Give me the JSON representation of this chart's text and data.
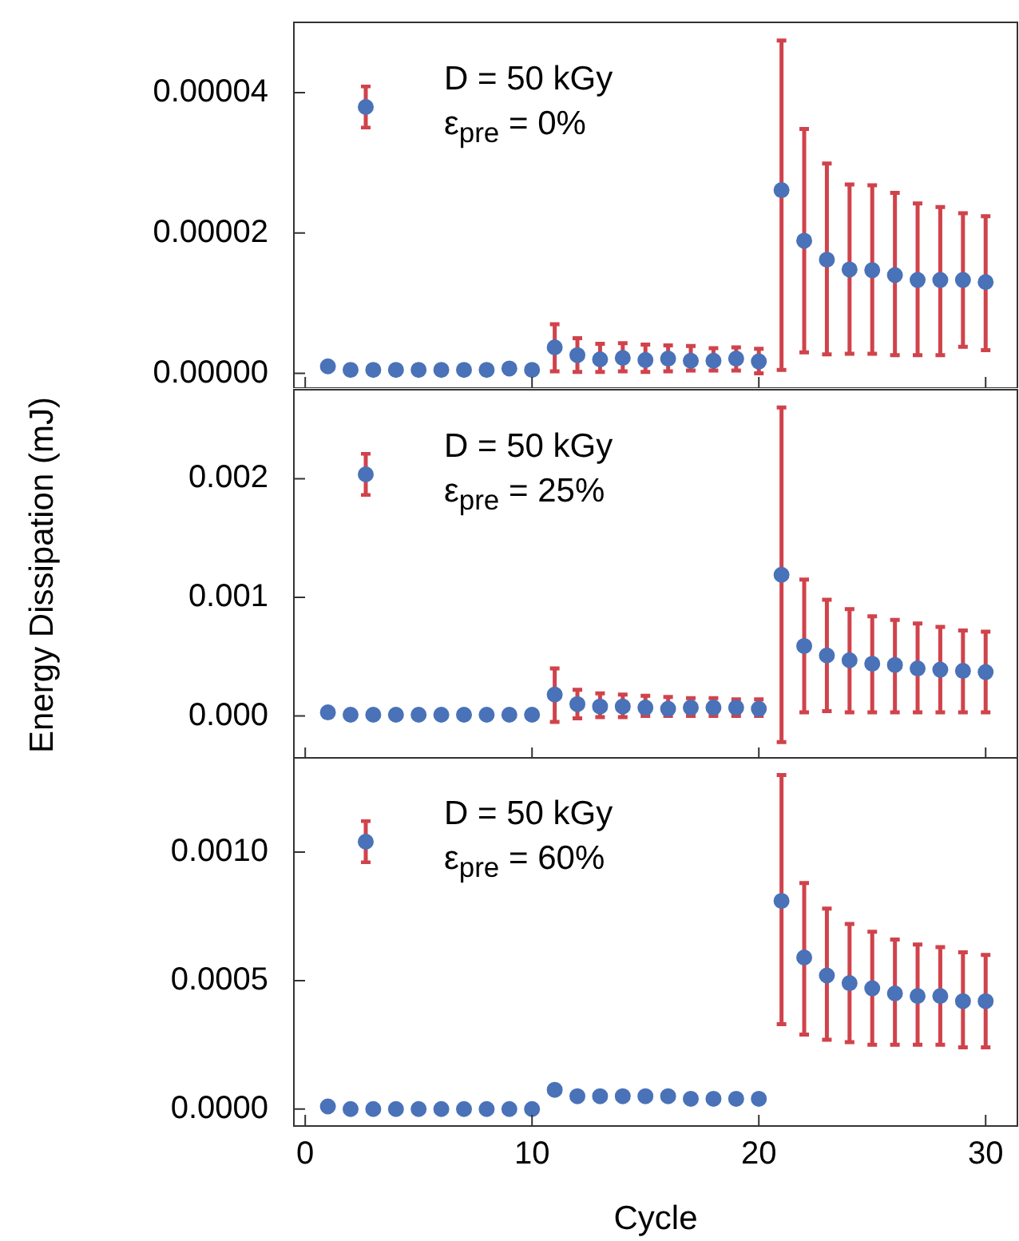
{
  "chart_data": [
    {
      "type": "scatter",
      "x": [
        1,
        2,
        3,
        4,
        5,
        6,
        7,
        8,
        9,
        10,
        11,
        12,
        13,
        14,
        15,
        16,
        17,
        18,
        19,
        20,
        21,
        22,
        23,
        24,
        25,
        26,
        27,
        28,
        29,
        30
      ],
      "xlim": [
        -0.5,
        31.4
      ],
      "xticks": [
        0,
        10,
        20,
        30
      ],
      "ylim": [
        -2.1e-06,
        5e-05
      ],
      "yticks": [
        {
          "value": 0,
          "label": "0.00000"
        },
        {
          "value": 2e-05,
          "label": "0.00002"
        },
        {
          "value": 4e-05,
          "label": "0.00004"
        }
      ],
      "tick_labels": "y",
      "marker": "circle",
      "legend": "top left",
      "series": [
        {
          "name": "D = 50 kGy\nε$_{pre}$ = 0%",
          "color": "#4a72b8",
          "values": [
            1e-06,
            5e-07,
            5e-07,
            5e-07,
            5e-07,
            5e-07,
            5e-07,
            5e-07,
            7e-07,
            5e-07,
            3.7e-06,
            2.6e-06,
            2e-06,
            2.2e-06,
            1.9e-06,
            2.1e-06,
            1.8e-06,
            1.8e-06,
            2.1e-06,
            1.7e-06,
            2.61e-05,
            1.89e-05,
            1.62e-05,
            1.48e-05,
            1.47e-05,
            1.4e-05,
            1.33e-05,
            1.33e-05,
            1.33e-05,
            1.3e-05
          ],
          "errors": [
            null,
            null,
            null,
            null,
            null,
            null,
            null,
            null,
            null,
            null,
            [
              3e-07,
              7e-06
            ],
            [
              2e-07,
              5e-06
            ],
            [
              2e-07,
              4.2e-06
            ],
            [
              3e-07,
              4.3e-06
            ],
            [
              2e-07,
              4.1e-06
            ],
            [
              3e-07,
              4e-06
            ],
            [
              4e-07,
              3.9e-06
            ],
            [
              4e-07,
              3.6e-06
            ],
            [
              4e-07,
              3.7e-06
            ],
            [
              0,
              3.5e-06
            ],
            [
              5e-07,
              4.74e-05
            ],
            [
              3e-06,
              3.48e-05
            ],
            [
              2.7e-06,
              2.99e-05
            ],
            [
              2.8e-06,
              2.69e-05
            ],
            [
              2.8e-06,
              2.68e-05
            ],
            [
              2.6e-06,
              2.57e-05
            ],
            [
              2.6e-06,
              2.42e-05
            ],
            [
              2.6e-06,
              2.37e-05
            ],
            [
              3.8e-06,
              2.28e-05
            ],
            [
              3.3e-06,
              2.24e-05
            ]
          ]
        }
      ]
    },
    {
      "type": "scatter",
      "x": [
        1,
        2,
        3,
        4,
        5,
        6,
        7,
        8,
        9,
        10,
        11,
        12,
        13,
        14,
        15,
        16,
        17,
        18,
        19,
        20,
        21,
        22,
        23,
        24,
        25,
        26,
        27,
        28,
        29,
        30
      ],
      "xlim": [
        -0.5,
        31.4
      ],
      "xticks": [
        0,
        10,
        20,
        30
      ],
      "ylim": [
        -0.00036,
        0.00275
      ],
      "yticks": [
        {
          "value": 0,
          "label": "0.000"
        },
        {
          "value": 0.001,
          "label": "0.001"
        },
        {
          "value": 0.002,
          "label": "0.002"
        }
      ],
      "tick_labels": "y",
      "marker": "circle",
      "legend": "top left",
      "ylabel": "Energy Dissipation (mJ)",
      "series": [
        {
          "name": "D = 50 kGy\nε$_{pre}$ = 25%",
          "color": "#4a72b8",
          "values": [
            3e-05,
            1e-05,
            1e-05,
            1e-05,
            1e-05,
            1e-05,
            1e-05,
            1e-05,
            1e-05,
            1e-05,
            0.00018,
            0.0001,
            8e-05,
            8e-05,
            7e-05,
            6e-05,
            7e-05,
            7e-05,
            7e-05,
            6e-05,
            0.00119,
            0.00059,
            0.00051,
            0.00047,
            0.00044,
            0.00043,
            0.0004,
            0.00039,
            0.00038,
            0.00037
          ],
          "errors": [
            null,
            null,
            null,
            null,
            null,
            null,
            null,
            null,
            null,
            null,
            [
              -5e-05,
              0.0004
            ],
            [
              -2e-05,
              0.00022
            ],
            [
              -1e-05,
              0.00019
            ],
            [
              -1e-05,
              0.00018
            ],
            [
              0,
              0.00017
            ],
            [
              0,
              0.00016
            ],
            [
              0,
              0.00015
            ],
            [
              0,
              0.00015
            ],
            [
              0,
              0.00014
            ],
            [
              0,
              0.00014
            ],
            [
              -0.00022,
              0.0026
            ],
            [
              3e-05,
              0.00115
            ],
            [
              4e-05,
              0.00098
            ],
            [
              3e-05,
              0.0009
            ],
            [
              3e-05,
              0.00084
            ],
            [
              3e-05,
              0.00081
            ],
            [
              3e-05,
              0.00078
            ],
            [
              3e-05,
              0.00075
            ],
            [
              3e-05,
              0.00072
            ],
            [
              3e-05,
              0.00071
            ]
          ]
        }
      ]
    },
    {
      "type": "scatter",
      "x": [
        1,
        2,
        3,
        4,
        5,
        6,
        7,
        8,
        9,
        10,
        11,
        12,
        13,
        14,
        15,
        16,
        17,
        18,
        19,
        20,
        21,
        22,
        23,
        24,
        25,
        26,
        27,
        28,
        29,
        30
      ],
      "xlim": [
        -0.5,
        31.4
      ],
      "xticks": [
        0,
        10,
        20,
        30
      ],
      "xlabel": "Cycle",
      "ylim": [
        -6.6e-05,
        0.00137
      ],
      "yticks": [
        {
          "value": 0,
          "label": "0.0000"
        },
        {
          "value": 0.0005,
          "label": "0.0005"
        },
        {
          "value": 0.001,
          "label": "0.0010"
        }
      ],
      "marker": "circle",
      "legend": "top left",
      "series": [
        {
          "name": "D = 50 kGy\nε$_{pre}$ = 60%",
          "color": "#4a72b8",
          "values": [
            1e-05,
            0,
            0,
            0,
            0,
            0,
            0,
            0,
            0,
            0,
            7.5e-05,
            5e-05,
            5e-05,
            5e-05,
            5e-05,
            5e-05,
            4e-05,
            4e-05,
            4e-05,
            4e-05,
            0.00081,
            0.00059,
            0.00052,
            0.00049,
            0.00047,
            0.00045,
            0.00044,
            0.00044,
            0.00042,
            0.00042
          ],
          "errors": [
            null,
            null,
            null,
            null,
            null,
            null,
            null,
            null,
            null,
            null,
            null,
            null,
            null,
            null,
            null,
            null,
            null,
            null,
            null,
            null,
            [
              0.00033,
              0.0013
            ],
            [
              0.00029,
              0.00088
            ],
            [
              0.00027,
              0.00078
            ],
            [
              0.00026,
              0.00072
            ],
            [
              0.00025,
              0.00069
            ],
            [
              0.00025,
              0.00066
            ],
            [
              0.00025,
              0.00064
            ],
            [
              0.00025,
              0.00063
            ],
            [
              0.00024,
              0.00061
            ],
            [
              0.00024,
              0.0006
            ]
          ]
        }
      ]
    }
  ]
}
